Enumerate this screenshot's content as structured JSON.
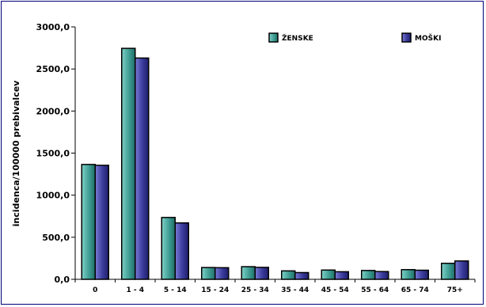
{
  "chart_data": {
    "type": "bar",
    "title": "",
    "xlabel": "",
    "ylabel": "incidenca/100000 prebivalcev",
    "categories": [
      "0",
      "1 - 4",
      "5 - 14",
      "15 - 24",
      "25 - 34",
      "35 - 44",
      "45 - 54",
      "55 - 64",
      "65 - 74",
      "75+"
    ],
    "series": [
      {
        "name": "ŽENSKE",
        "color": "#3f9e94",
        "values": [
          1365,
          2745,
          735,
          140,
          150,
          100,
          110,
          105,
          115,
          190
        ]
      },
      {
        "name": "MOŠKI",
        "color": "#3b3b9c",
        "values": [
          1355,
          2630,
          670,
          138,
          142,
          80,
          90,
          92,
          108,
          218
        ]
      }
    ],
    "ylim": [
      0,
      3000
    ],
    "yticks": [
      0,
      500,
      1000,
      1500,
      2000,
      2500,
      3000
    ],
    "ytick_labels": [
      "0,0",
      "500,0",
      "1000,0",
      "1500,0",
      "2000,0",
      "2500,0",
      "3000,0"
    ],
    "grid": false,
    "legend_position": "top-right",
    "frame_color": "#00007a"
  }
}
